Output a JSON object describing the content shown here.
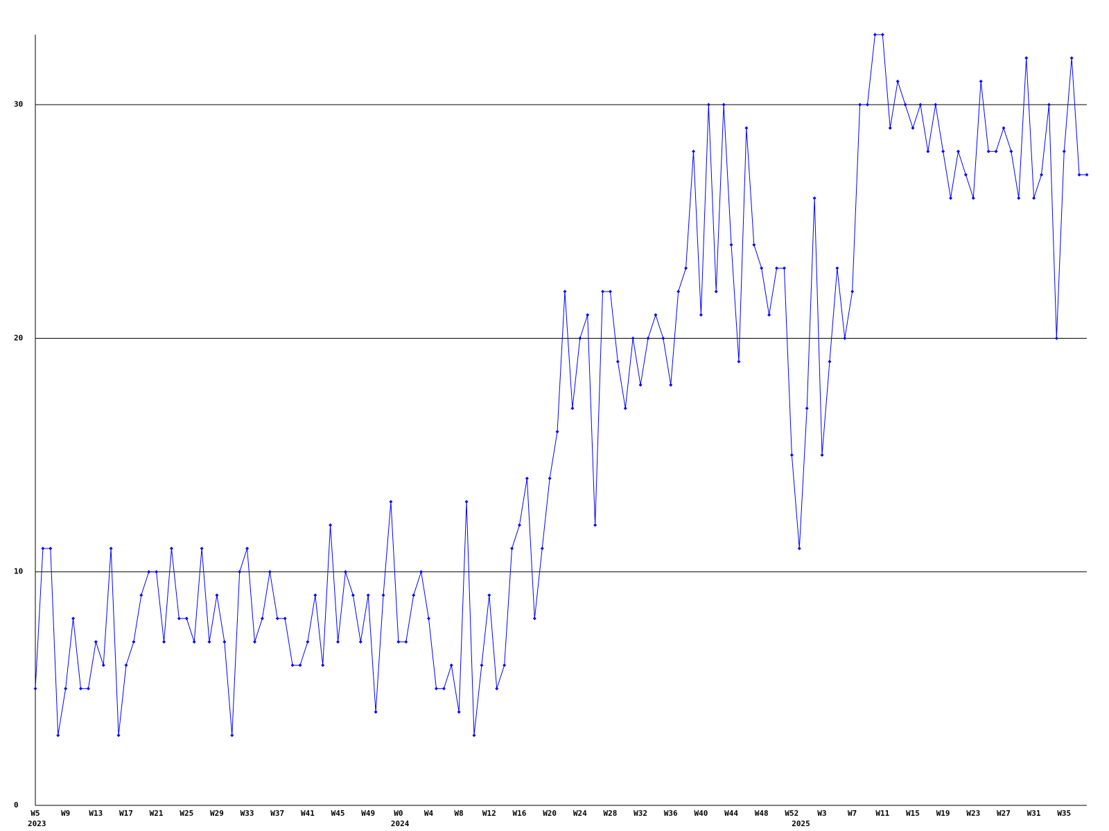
{
  "chart_data": {
    "type": "line",
    "categories": [
      "W5",
      null,
      null,
      null,
      "W9",
      null,
      null,
      null,
      "W13",
      null,
      null,
      null,
      "W17",
      null,
      null,
      null,
      "W21",
      null,
      null,
      null,
      "W25",
      null,
      null,
      null,
      "W29",
      null,
      null,
      null,
      "W33",
      null,
      null,
      null,
      "W37",
      null,
      null,
      null,
      "W41",
      null,
      null,
      null,
      "W45",
      null,
      null,
      null,
      "W49",
      null,
      null,
      null,
      "W0",
      null,
      null,
      null,
      "W4",
      null,
      null,
      null,
      "W8",
      null,
      null,
      null,
      "W12",
      null,
      null,
      null,
      "W16",
      null,
      null,
      null,
      "W20",
      null,
      null,
      null,
      "W24",
      null,
      null,
      null,
      "W28",
      null,
      null,
      null,
      "W32",
      null,
      null,
      null,
      "W36",
      null,
      null,
      null,
      "W40",
      null,
      null,
      null,
      "W44",
      null,
      null,
      null,
      "W48",
      null,
      null,
      null,
      "W52",
      null,
      null,
      null,
      "W3",
      null,
      null,
      null,
      "W7",
      null,
      null,
      null,
      "W11",
      null,
      null,
      null,
      "W15",
      null,
      null,
      null,
      "W19",
      null,
      null,
      null,
      "W23",
      null,
      null,
      null,
      "W27",
      null,
      null,
      null,
      "W31",
      null,
      null,
      null,
      "W35",
      null,
      null,
      null
    ],
    "year_labels": [
      "2023",
      null,
      null,
      null,
      null,
      null,
      null,
      null,
      null,
      null,
      null,
      null,
      null,
      null,
      null,
      null,
      null,
      null,
      null,
      null,
      null,
      null,
      null,
      null,
      null,
      null,
      null,
      null,
      null,
      null,
      null,
      null,
      null,
      null,
      null,
      null,
      null,
      null,
      null,
      null,
      null,
      null,
      null,
      null,
      null,
      null,
      null,
      null,
      "2024",
      null,
      null,
      null,
      null,
      null,
      null,
      null,
      null,
      null,
      null,
      null,
      null,
      null,
      null,
      null,
      null,
      null,
      null,
      null,
      null,
      null,
      null,
      null,
      null,
      null,
      null,
      null,
      null,
      null,
      null,
      null,
      null,
      null,
      null,
      null,
      null,
      null,
      null,
      null,
      null,
      null,
      null,
      null,
      null,
      null,
      null,
      null,
      null,
      null,
      null,
      null,
      null,
      "2025",
      null,
      null,
      null,
      null,
      null,
      null,
      null,
      null,
      null,
      null,
      null,
      null,
      null,
      null,
      null,
      null,
      null,
      null,
      null,
      null,
      null,
      null,
      null,
      null,
      null,
      null,
      null,
      null,
      null,
      null,
      null,
      null,
      null,
      null,
      null,
      null,
      null,
      null
    ],
    "values": [
      5,
      11,
      11,
      3,
      5,
      8,
      5,
      5,
      7,
      6,
      11,
      3,
      6,
      7,
      9,
      10,
      10,
      7,
      11,
      8,
      8,
      7,
      11,
      7,
      9,
      7,
      3,
      10,
      11,
      7,
      8,
      10,
      8,
      8,
      6,
      6,
      7,
      9,
      6,
      12,
      7,
      10,
      9,
      7,
      9,
      4,
      9,
      13,
      7,
      7,
      9,
      10,
      8,
      5,
      5,
      6,
      4,
      13,
      3,
      6,
      9,
      5,
      6,
      11,
      12,
      14,
      8,
      11,
      14,
      16,
      22,
      17,
      20,
      21,
      12,
      22,
      22,
      19,
      17,
      20,
      18,
      20,
      21,
      20,
      18,
      22,
      23,
      28,
      21,
      30,
      22,
      30,
      24,
      19,
      29,
      24,
      23,
      21,
      23,
      23,
      15,
      11,
      17,
      26,
      15,
      19,
      23,
      20,
      22,
      30,
      30,
      33,
      33,
      29,
      31,
      30,
      29,
      30,
      28,
      30,
      28,
      26,
      28,
      27,
      26,
      31,
      28,
      28,
      29,
      28,
      26,
      32,
      26,
      27,
      30,
      20,
      28,
      32,
      27,
      27
    ],
    "color": "#0000ff",
    "ylim": [
      0,
      33
    ],
    "yticks": [
      0,
      10,
      20,
      30
    ],
    "grid": true
  }
}
